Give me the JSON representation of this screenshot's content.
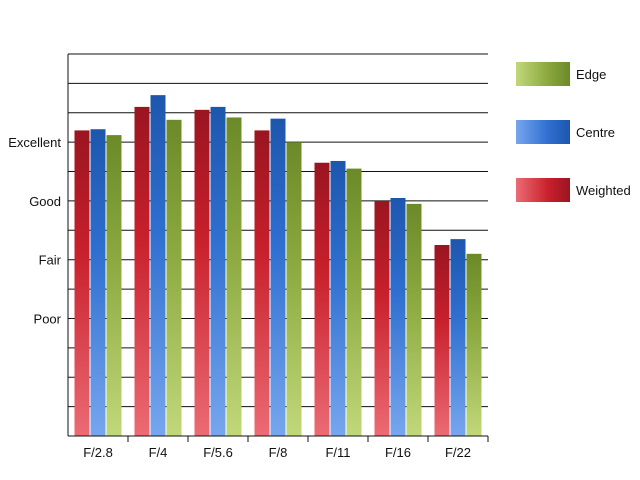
{
  "chart_data": {
    "type": "bar",
    "title": "",
    "xlabel": "",
    "ylabel": "",
    "categories": [
      "F/2.8",
      "F/4",
      "F/5.6",
      "F/8",
      "F/11",
      "F/16",
      "F/22"
    ],
    "y_tick_labels": [
      {
        "value": 1,
        "label": "Poor"
      },
      {
        "value": 2,
        "label": "Fair"
      },
      {
        "value": 3,
        "label": "Good"
      },
      {
        "value": 4,
        "label": "Excellent"
      }
    ],
    "ylim": [
      -1,
      5.5
    ],
    "grid": true,
    "legend_position": "right",
    "series": [
      {
        "name": "Weighted",
        "values": [
          4.2,
          4.6,
          4.55,
          4.2,
          3.65,
          3.0,
          2.25
        ],
        "color": "#c8202c"
      },
      {
        "name": "Centre",
        "values": [
          4.22,
          4.8,
          4.6,
          4.4,
          3.68,
          3.05,
          2.35
        ],
        "color": "#2f6fd0"
      },
      {
        "name": "Edge",
        "values": [
          4.12,
          4.38,
          4.42,
          4.0,
          3.55,
          2.95,
          2.1
        ],
        "color": "#8aa83e"
      }
    ],
    "legend_order": [
      "Edge",
      "Centre",
      "Weighted"
    ]
  }
}
